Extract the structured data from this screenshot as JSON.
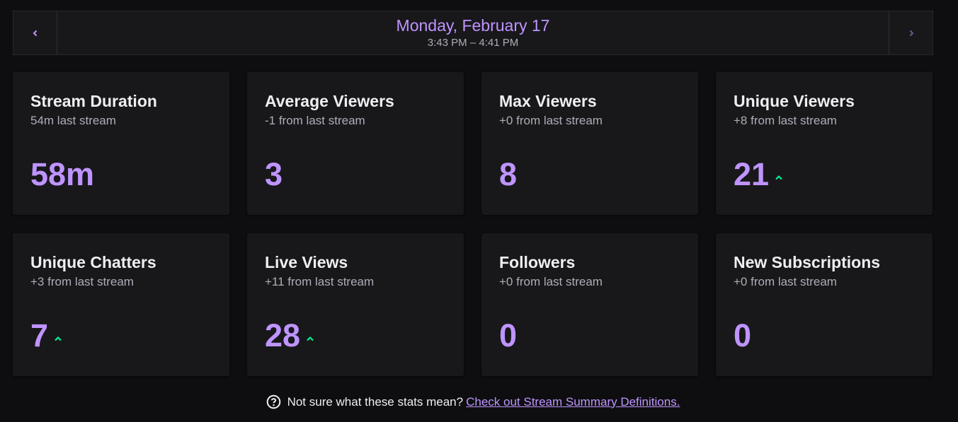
{
  "date_nav": {
    "title": "Monday, February 17",
    "time_range": "3:43 PM – 4:41 PM",
    "prev_icon": "chevron-left-icon",
    "next_icon": "chevron-right-icon"
  },
  "stats": [
    {
      "title": "Stream Duration",
      "subtitle": "54m last stream",
      "value": "58m",
      "trend": "none"
    },
    {
      "title": "Average Viewers",
      "subtitle": "-1 from last stream",
      "value": "3",
      "trend": "none"
    },
    {
      "title": "Max Viewers",
      "subtitle": "+0 from last stream",
      "value": "8",
      "trend": "none"
    },
    {
      "title": "Unique Viewers",
      "subtitle": "+8 from last stream",
      "value": "21",
      "trend": "up"
    },
    {
      "title": "Unique Chatters",
      "subtitle": "+3 from last stream",
      "value": "7",
      "trend": "up"
    },
    {
      "title": "Live Views",
      "subtitle": "+11 from last stream",
      "value": "28",
      "trend": "up"
    },
    {
      "title": "Followers",
      "subtitle": "+0 from last stream",
      "value": "0",
      "trend": "none"
    },
    {
      "title": "New Subscriptions",
      "subtitle": "+0 from last stream",
      "value": "0",
      "trend": "none"
    }
  ],
  "footer": {
    "question": "Not sure what these stats mean?",
    "link": "Check out Stream Summary Definitions.",
    "icon": "help-circle-icon"
  },
  "colors": {
    "accent": "#bf94ff",
    "trend_up": "#00f593",
    "background": "#0e0e10",
    "card": "#18181b"
  }
}
